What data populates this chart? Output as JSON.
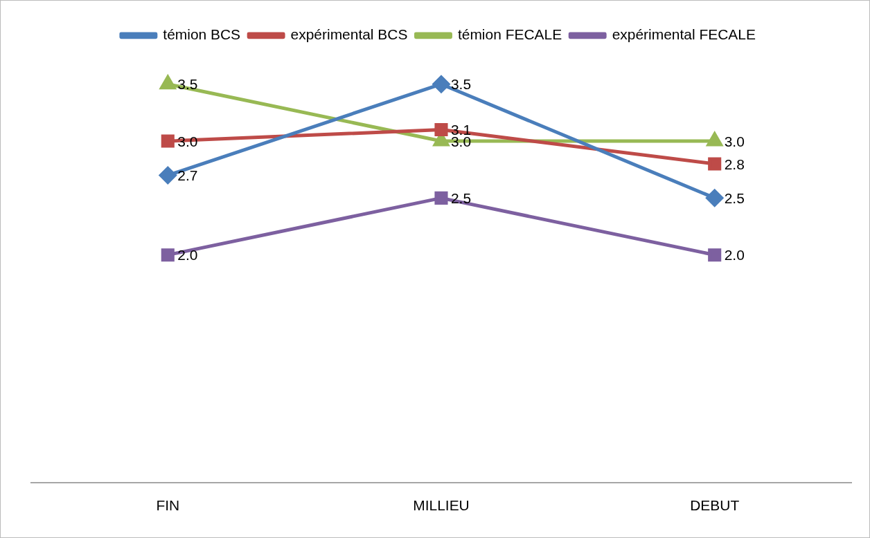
{
  "chart_data": {
    "type": "line",
    "categories": [
      "FIN",
      "MILLIEU",
      "DEBUT"
    ],
    "series": [
      {
        "name": "témion BCS",
        "color": "#4a7ebb",
        "marker": "diamond",
        "values": [
          2.7,
          3.5,
          2.5
        ],
        "value_labels": [
          "2.7",
          "3.5",
          "2.5"
        ]
      },
      {
        "name": "expérimental BCS",
        "color": "#be4b48",
        "marker": "square",
        "values": [
          3.0,
          3.1,
          2.8
        ],
        "value_labels": [
          "3.0",
          "3.1",
          "2.8"
        ]
      },
      {
        "name": "témion FECALE",
        "color": "#98b954",
        "marker": "triangle",
        "values": [
          3.5,
          3.0,
          3.0
        ],
        "value_labels": [
          "3.5",
          "3.0",
          "3.0"
        ]
      },
      {
        "name": "expérimental FECALE",
        "color": "#7d60a0",
        "marker": "square",
        "values": [
          2.0,
          2.5,
          2.0
        ],
        "value_labels": [
          "2.0",
          "2.5",
          "2.0"
        ]
      }
    ],
    "grid": false,
    "legend": "top",
    "tick_labels": "x"
  }
}
